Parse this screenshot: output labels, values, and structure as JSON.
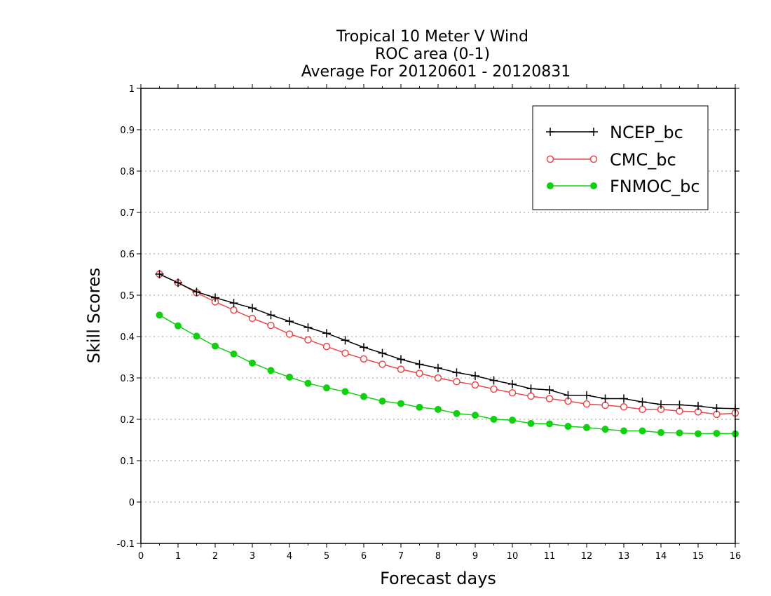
{
  "chart_data": {
    "type": "line",
    "title_lines": [
      "Tropical 10 Meter V Wind",
      "ROC area (0-1)",
      "Average For 20120601 - 20120831"
    ],
    "xlabel": "Forecast days",
    "ylabel": "Skill Scores",
    "xlim": [
      0,
      16
    ],
    "ylim": [
      -0.1,
      1
    ],
    "x_ticks": [
      "0",
      "1",
      "2",
      "3",
      "4",
      "5",
      "6",
      "7",
      "8",
      "9",
      "10",
      "11",
      "12",
      "13",
      "14",
      "15",
      "16"
    ],
    "y_ticks": [
      "-0.1",
      "0",
      "0.1",
      "0.2",
      "0.3",
      "0.4",
      "0.5",
      "0.6",
      "0.7",
      "0.8",
      "0.9",
      "1"
    ],
    "grid": true,
    "legend_position": "top-right",
    "x": [
      0.5,
      1,
      1.5,
      2,
      2.5,
      3,
      3.5,
      4,
      4.5,
      5,
      5.5,
      6,
      6.5,
      7,
      7.5,
      8,
      8.5,
      9,
      9.5,
      10,
      10.5,
      11,
      11.5,
      12,
      12.5,
      13,
      13.5,
      14,
      14.5,
      15,
      15.5,
      16
    ],
    "series": [
      {
        "name": "NCEP_bc",
        "color": "#000000",
        "marker": "plus",
        "values": [
          0.551,
          0.53,
          0.508,
          0.494,
          0.481,
          0.469,
          0.452,
          0.437,
          0.422,
          0.408,
          0.391,
          0.374,
          0.36,
          0.345,
          0.333,
          0.324,
          0.313,
          0.305,
          0.294,
          0.285,
          0.274,
          0.271,
          0.258,
          0.258,
          0.25,
          0.25,
          0.242,
          0.236,
          0.235,
          0.232,
          0.227,
          0.226
        ]
      },
      {
        "name": "CMC_bc",
        "color": "#e8474c",
        "marker": "open-circle",
        "values": [
          0.551,
          0.53,
          0.506,
          0.484,
          0.464,
          0.444,
          0.427,
          0.406,
          0.392,
          0.376,
          0.36,
          0.346,
          0.333,
          0.321,
          0.311,
          0.3,
          0.291,
          0.283,
          0.273,
          0.264,
          0.256,
          0.25,
          0.244,
          0.237,
          0.234,
          0.23,
          0.224,
          0.224,
          0.22,
          0.218,
          0.212,
          0.215
        ]
      },
      {
        "name": "FNMOC_bc",
        "color": "#10d010",
        "marker": "filled-circle",
        "values": [
          0.452,
          0.426,
          0.401,
          0.377,
          0.358,
          0.336,
          0.318,
          0.302,
          0.287,
          0.276,
          0.267,
          0.255,
          0.244,
          0.238,
          0.229,
          0.224,
          0.214,
          0.21,
          0.2,
          0.198,
          0.19,
          0.189,
          0.183,
          0.18,
          0.176,
          0.172,
          0.172,
          0.168,
          0.167,
          0.165,
          0.166,
          0.165
        ]
      }
    ]
  }
}
